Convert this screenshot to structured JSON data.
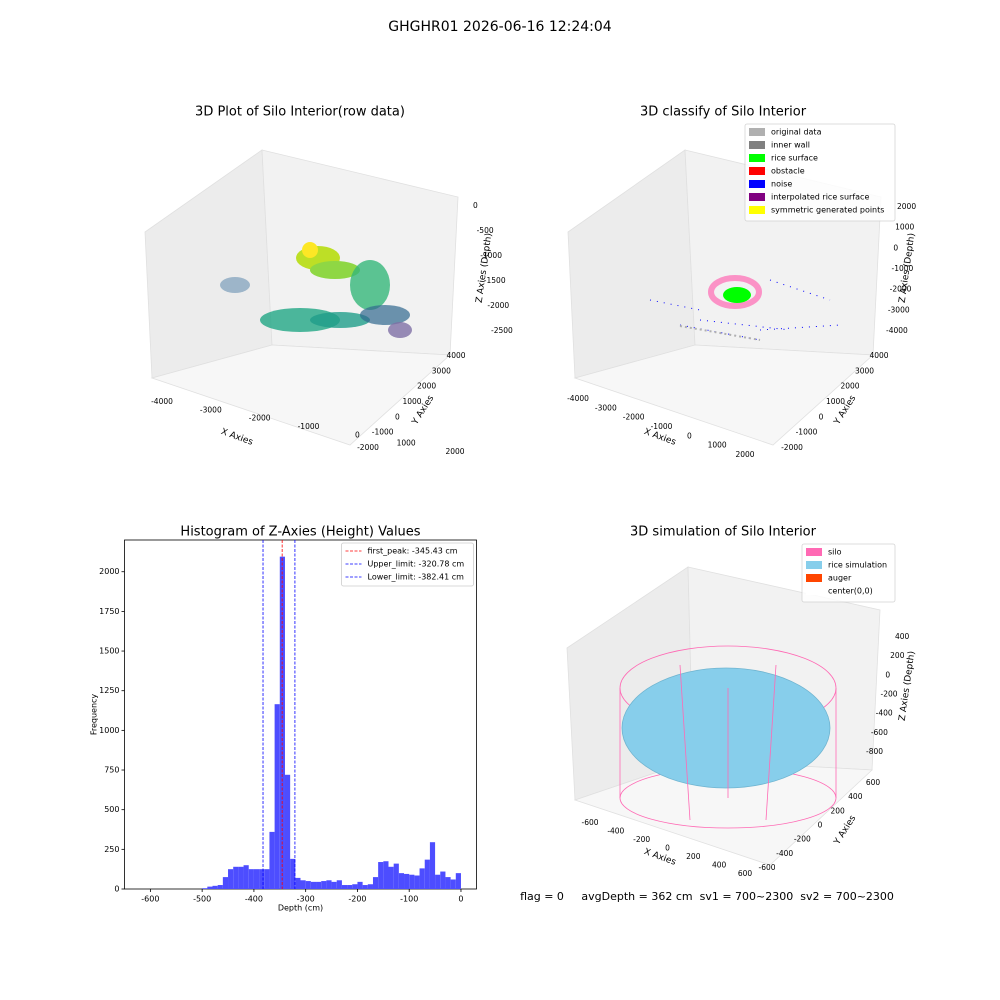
{
  "title": "GHGHR01 2026-06-16 12:24:04",
  "chart_data": [
    {
      "type": "scatter3d",
      "title": "3D Plot of Silo Interior(row data)",
      "xlabel": "X Axies",
      "ylabel": "Y Axies",
      "zlabel": "Z Axies (Depth)",
      "xticks": [
        -4000,
        -3000,
        -2000,
        -1000,
        0,
        1000,
        2000
      ],
      "yticks": [
        -2000,
        -1000,
        0,
        1000,
        2000,
        3000,
        4000
      ],
      "zticks": [
        0,
        -500,
        -1000,
        -1500,
        -2000,
        -2500
      ]
    },
    {
      "type": "scatter3d",
      "title": "3D classify of Silo Interior",
      "xlabel": "X Axies",
      "ylabel": "Y Axies",
      "zlabel": "Z Axies (Depth)",
      "xticks": [
        -4000,
        -3000,
        -2000,
        -1000,
        0,
        1000,
        2000
      ],
      "yticks": [
        -2000,
        -1000,
        0,
        1000,
        2000,
        3000,
        4000
      ],
      "zticks": [
        2000,
        1000,
        0,
        -1000,
        -2000,
        -3000,
        -4000
      ],
      "legend": [
        {
          "name": "original data",
          "color": "#b0b0b0"
        },
        {
          "name": "inner wall",
          "color": "#808080"
        },
        {
          "name": "rice surface",
          "color": "#00ff00"
        },
        {
          "name": "obstacle",
          "color": "#ff0000"
        },
        {
          "name": "noise",
          "color": "#0000ff"
        },
        {
          "name": "interpolated rice surface",
          "color": "#800080"
        },
        {
          "name": "symmetric generated points",
          "color": "#ffff00"
        }
      ]
    },
    {
      "type": "histogram",
      "title": "Histogram of Z-Axies (Height) Values",
      "xlabel": "Depth (cm)",
      "ylabel": "Frequency",
      "color": "#4d4dff",
      "bins": [
        -500,
        -490,
        -480,
        -470,
        -460,
        -450,
        -440,
        -430,
        -420,
        -410,
        -400,
        -390,
        -380,
        -370,
        -360,
        -350,
        -340,
        -330,
        -320,
        -310,
        -300,
        -290,
        -280,
        -270,
        -260,
        -250,
        -240,
        -230,
        -220,
        -210,
        -200,
        -190,
        -180,
        -170,
        -160,
        -150,
        -140,
        -130,
        -120,
        -110,
        -100,
        -90,
        -80,
        -70,
        -60,
        -50,
        -40,
        -30,
        -20,
        -10,
        0
      ],
      "counts": [
        5,
        15,
        20,
        25,
        75,
        125,
        140,
        140,
        150,
        125,
        125,
        125,
        125,
        360,
        1165,
        2095,
        720,
        190,
        70,
        55,
        50,
        45,
        45,
        50,
        55,
        45,
        55,
        25,
        25,
        30,
        45,
        25,
        30,
        75,
        170,
        175,
        140,
        160,
        100,
        95,
        90,
        85,
        130,
        185,
        295,
        90,
        110,
        75,
        60,
        100
      ],
      "xlim": [
        -650,
        30
      ],
      "xticks": [
        -600,
        -500,
        -400,
        -300,
        -200,
        -100,
        0
      ],
      "ylim": [
        0,
        2200
      ],
      "yticks": [
        0,
        250,
        500,
        750,
        1000,
        1250,
        1500,
        1750,
        2000
      ],
      "lines": [
        {
          "label": "first_peak: -345.43 cm",
          "value": -345.43,
          "color": "#ff0000"
        },
        {
          "label": "Upper_limit: -320.78 cm",
          "value": -320.78,
          "color": "#0000ff"
        },
        {
          "label": "Lower_limit: -382.41 cm",
          "value": -382.41,
          "color": "#0000ff"
        }
      ],
      "legend_position": "upper right"
    },
    {
      "type": "surface3d",
      "title": "3D simulation of Silo Interior",
      "xlabel": "X Axies",
      "ylabel": "Y Axies",
      "zlabel": "Z Axies (Depth)",
      "xticks": [
        -600,
        -400,
        -200,
        0,
        200,
        400,
        600
      ],
      "yticks": [
        -600,
        -400,
        -200,
        0,
        200,
        400,
        600
      ],
      "zticks": [
        -800,
        -600,
        -400,
        -200,
        0,
        200,
        400
      ],
      "legend": [
        {
          "name": "silo",
          "color": "#ff69b4"
        },
        {
          "name": "rice simulation",
          "color": "#87ceeb"
        },
        {
          "name": "auger",
          "color": "#ff4500"
        },
        {
          "name": "center(0,0)",
          "color": "#ffffff"
        }
      ],
      "footer": "flag = 0     avgDepth = 362 cm  sv1 = 700~2300  sv2 = 700~2300"
    }
  ]
}
